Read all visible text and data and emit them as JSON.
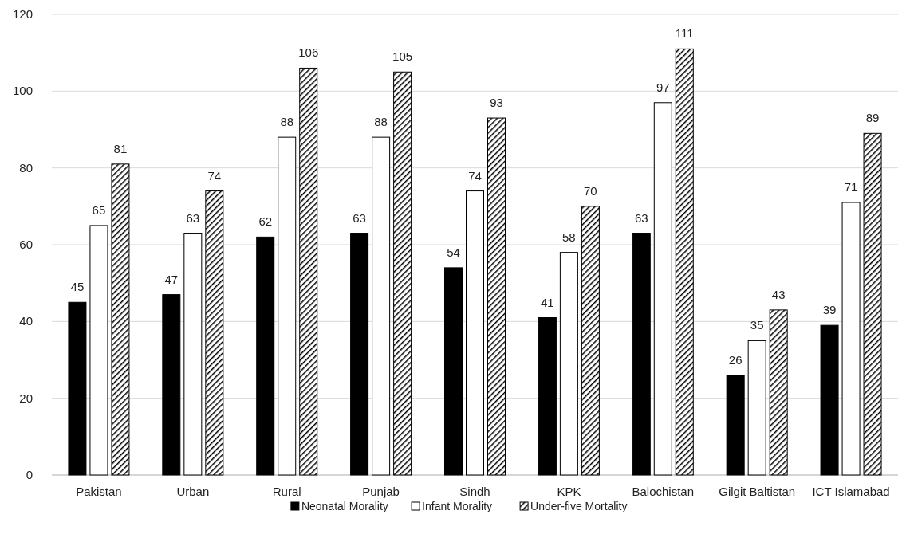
{
  "chart_data": {
    "type": "bar",
    "categories": [
      "Pakistan",
      "Urban",
      "Rural",
      "Punjab",
      "Sindh",
      "KPK",
      "Balochistan",
      "Gilgit Baltistan",
      "ICT Islamabad"
    ],
    "series": [
      {
        "name": "Neonatal Morality",
        "color": "#000000",
        "values": [
          45,
          47,
          62,
          63,
          54,
          41,
          63,
          26,
          39
        ]
      },
      {
        "name": "Infant Morality",
        "color": "#ffffff",
        "values": [
          65,
          63,
          88,
          88,
          74,
          58,
          97,
          35,
          71
        ]
      },
      {
        "name": "Under-five Mortality",
        "color": "#000000",
        "values": [
          81,
          74,
          106,
          105,
          93,
          70,
          111,
          43,
          89
        ]
      }
    ],
    "ylim": [
      0,
      120
    ],
    "yticks": [
      0,
      20,
      40,
      60,
      80,
      100,
      120
    ],
    "grid": "y",
    "legend": "bottom",
    "data_labels": true
  }
}
